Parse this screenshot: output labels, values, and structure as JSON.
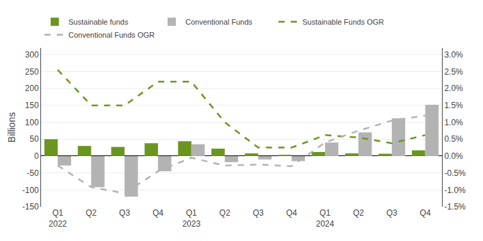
{
  "chart_data": {
    "type": "bar",
    "ylabel": "Billions",
    "categories": [
      "Q1\n2022",
      "Q2",
      "Q3",
      "Q4",
      "Q1\n2023",
      "Q2",
      "Q3",
      "Q4",
      "Q1\n2024",
      "Q2",
      "Q3",
      "Q4"
    ],
    "series": [
      {
        "name": "Sustainable funds",
        "color": "#6a961f",
        "values": [
          50,
          30,
          27,
          38,
          44,
          22,
          8,
          3,
          12,
          8,
          7,
          17
        ]
      },
      {
        "name": "Conventional Funds",
        "color": "#b3b3b3",
        "values": [
          -28,
          -92,
          -120,
          -45,
          35,
          -18,
          -10,
          -15,
          40,
          70,
          112,
          152
        ]
      },
      {
        "name": "Sustainable Funds OGR",
        "type": "line",
        "line_style": "dashed",
        "axis": "y2",
        "color": "#6a961f",
        "values": [
          2.55,
          1.5,
          1.5,
          2.2,
          2.2,
          1.0,
          0.25,
          0.25,
          0.62,
          0.55,
          0.38,
          0.62
        ]
      },
      {
        "name": "Conventional Funds OGR",
        "type": "line",
        "line_style": "dashed",
        "axis": "y2",
        "color": "#b3b3b3",
        "values": [
          -0.28,
          -0.92,
          -1.1,
          -0.45,
          -0.05,
          -0.28,
          -0.25,
          -0.3,
          0.4,
          0.75,
          1.05,
          1.2
        ]
      }
    ],
    "ylim": [
      -150,
      320
    ],
    "yticks": [
      -150,
      -100,
      -50,
      0,
      50,
      100,
      150,
      200,
      250,
      300
    ],
    "y2lim": [
      -1.5,
      3.2
    ],
    "y2ticks": [
      {
        "value": -1.5,
        "label": "-1.5%"
      },
      {
        "value": -1.0,
        "label": "-1.0%"
      },
      {
        "value": -0.5,
        "label": "-0.5%"
      },
      {
        "value": 0.0,
        "label": "0.0%"
      },
      {
        "value": 0.5,
        "label": "0.5%"
      },
      {
        "value": 1.0,
        "label": "1.0%"
      },
      {
        "value": 1.5,
        "label": "1.5%"
      },
      {
        "value": 2.0,
        "label": "2.0%"
      },
      {
        "value": 2.5,
        "label": "2.5%"
      },
      {
        "value": 3.0,
        "label": "3.0%"
      }
    ],
    "grid": true,
    "legend": "top"
  }
}
